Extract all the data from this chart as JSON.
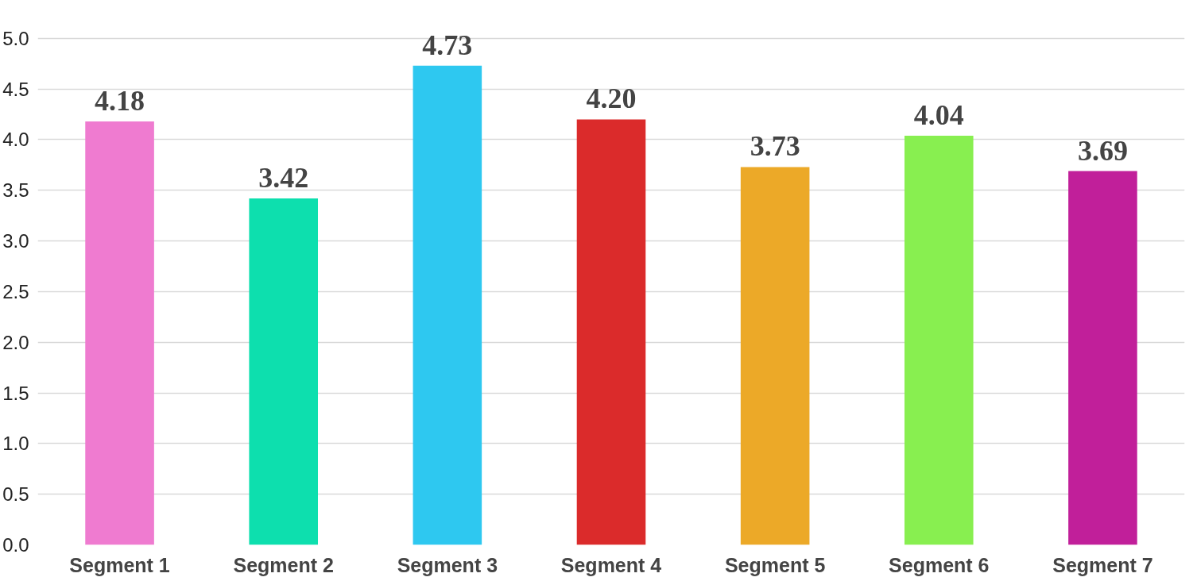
{
  "chart_data": {
    "type": "bar",
    "categories": [
      "Segment 1",
      "Segment 2",
      "Segment 3",
      "Segment 4",
      "Segment 5",
      "Segment 6",
      "Segment 7"
    ],
    "values": [
      4.18,
      3.42,
      4.73,
      4.2,
      3.73,
      4.04,
      3.69
    ],
    "colors": [
      "#ef7bd0",
      "#0ddfae",
      "#2ec8f0",
      "#db2b2b",
      "#eca928",
      "#88ef50",
      "#c11f9a"
    ],
    "value_labels": [
      "4.18",
      "3.42",
      "4.73",
      "4.20",
      "3.73",
      "4.04",
      "3.69"
    ],
    "ylim": [
      0,
      5
    ],
    "yticks": [
      {
        "value": 0,
        "label": "0.0"
      },
      {
        "value": 0.5,
        "label": "0.5"
      },
      {
        "value": 1,
        "label": "1.0"
      },
      {
        "value": 1.5,
        "label": "1.5"
      },
      {
        "value": 2,
        "label": "2.0"
      },
      {
        "value": 2.5,
        "label": "2.5"
      },
      {
        "value": 3,
        "label": "3.0"
      },
      {
        "value": 3.5,
        "label": "3.5"
      },
      {
        "value": 4,
        "label": "4.0"
      },
      {
        "value": 4.5,
        "label": "4.5"
      },
      {
        "value": 5,
        "label": "5.0"
      }
    ],
    "grid": "y"
  }
}
